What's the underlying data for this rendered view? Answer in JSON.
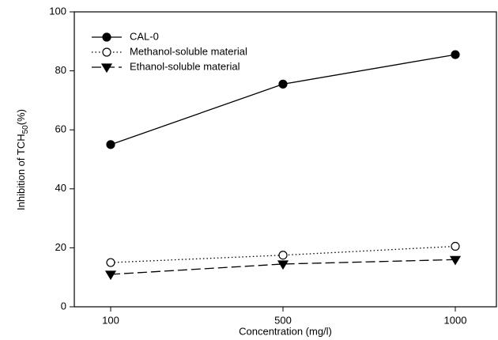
{
  "chart_data": {
    "type": "line",
    "x_label": "Concentration (mg/l)",
    "y_label": {
      "text": "Inhibition of TCH",
      "subscript": "50",
      "suffix": "(%)"
    },
    "categories": [
      "100",
      "500",
      "1000"
    ],
    "series": [
      {
        "name": "CAL-0",
        "color": "#000000",
        "dash": "solid",
        "marker": "filled-circle",
        "values": [
          55,
          75.5,
          85.5
        ]
      },
      {
        "name": "Methanol-soluble material",
        "color": "#000000",
        "dash": "dotted",
        "marker": "open-circle",
        "values": [
          15,
          17.5,
          20.5
        ]
      },
      {
        "name": "Ethanol-soluble material",
        "color": "#000000",
        "dash": "dashed",
        "marker": "filled-triangle-down",
        "values": [
          11,
          14.5,
          16
        ]
      }
    ],
    "ylim": [
      0,
      100
    ],
    "yticks": [
      0,
      20,
      40,
      60,
      80,
      100
    ],
    "legend": "upper-left",
    "grid": false
  }
}
